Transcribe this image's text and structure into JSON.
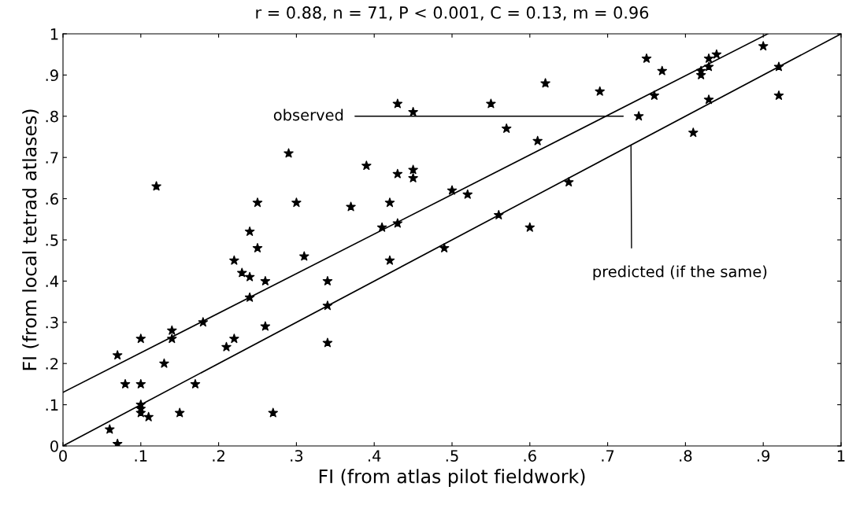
{
  "chart_data": {
    "type": "scatter",
    "title": "r = 0.88, n = 71, P < 0.001, C = 0.13, m = 0.96",
    "xlabel": "FI (from atlas pilot fieldwork)",
    "ylabel": "FI (from local tetrad atlases)",
    "xlim": [
      0,
      1
    ],
    "ylim": [
      0,
      1
    ],
    "xticks": [
      0,
      {
        "value": 0.1,
        "label": ".1"
      },
      {
        "value": 0.2,
        "label": ".2"
      },
      {
        "value": 0.3,
        "label": ".3"
      },
      {
        "value": 0.4,
        "label": ".4"
      },
      {
        "value": 0.5,
        "label": ".5"
      },
      {
        "value": 0.6,
        "label": ".6"
      },
      {
        "value": 0.7,
        "label": ".7"
      },
      {
        "value": 0.8,
        "label": ".8"
      },
      {
        "value": 0.9,
        "label": ".9"
      },
      1
    ],
    "yticks": [
      0,
      {
        "value": 0.1,
        "label": ".1"
      },
      {
        "value": 0.2,
        "label": ".2"
      },
      {
        "value": 0.3,
        "label": ".3"
      },
      {
        "value": 0.4,
        "label": ".4"
      },
      {
        "value": 0.5,
        "label": ".5"
      },
      {
        "value": 0.6,
        "label": ".6"
      },
      {
        "value": 0.7,
        "label": ".7"
      },
      {
        "value": 0.8,
        "label": ".8"
      },
      {
        "value": 0.9,
        "label": ".9"
      },
      1
    ],
    "grid": false,
    "series": [
      {
        "color": "#000000",
        "marker": "star",
        "x": [
          0.06,
          0.07,
          0.07,
          0.08,
          0.1,
          0.1,
          0.1,
          0.1,
          0.1,
          0.11,
          0.12,
          0.13,
          0.14,
          0.14,
          0.15,
          0.17,
          0.18,
          0.21,
          0.22,
          0.22,
          0.23,
          0.24,
          0.24,
          0.24,
          0.25,
          0.25,
          0.26,
          0.26,
          0.27,
          0.29,
          0.3,
          0.31,
          0.34,
          0.34,
          0.34,
          0.37,
          0.39,
          0.41,
          0.42,
          0.42,
          0.43,
          0.43,
          0.43,
          0.45,
          0.45,
          0.45,
          0.49,
          0.5,
          0.52,
          0.55,
          0.56,
          0.57,
          0.6,
          0.61,
          0.62,
          0.65,
          0.69,
          0.74,
          0.75,
          0.76,
          0.77,
          0.81,
          0.82,
          0.82,
          0.83,
          0.83,
          0.83,
          0.84,
          0.9,
          0.92,
          0.92
        ],
        "values": [
          0.04,
          0.005,
          0.22,
          0.15,
          0.26,
          0.15,
          0.1,
          0.09,
          0.08,
          0.07,
          0.63,
          0.2,
          0.28,
          0.26,
          0.08,
          0.15,
          0.3,
          0.24,
          0.26,
          0.45,
          0.42,
          0.41,
          0.52,
          0.36,
          0.59,
          0.48,
          0.4,
          0.29,
          0.08,
          0.71,
          0.59,
          0.46,
          0.4,
          0.34,
          0.25,
          0.58,
          0.68,
          0.53,
          0.59,
          0.45,
          0.83,
          0.66,
          0.54,
          0.81,
          0.67,
          0.65,
          0.48,
          0.62,
          0.61,
          0.83,
          0.56,
          0.77,
          0.53,
          0.74,
          0.88,
          0.64,
          0.86,
          0.8,
          0.94,
          0.85,
          0.91,
          0.76,
          0.91,
          0.9,
          0.92,
          0.94,
          0.84,
          0.95,
          0.97,
          0.92,
          0.85
        ]
      },
      {
        "type": "line",
        "color": "#000000",
        "marker": "none",
        "line_style": "solid",
        "x": [
          0,
          0.906
        ],
        "values": [
          0.13,
          1.0
        ]
      },
      {
        "type": "line",
        "color": "#000000",
        "marker": "none",
        "line_style": "solid",
        "x": [
          0,
          1
        ],
        "values": [
          0,
          1
        ]
      }
    ],
    "annotations": [
      "observed",
      {
        "text": "predicted (if the same)",
        "x": 0.73,
        "y": 0.73
      }
    ]
  }
}
